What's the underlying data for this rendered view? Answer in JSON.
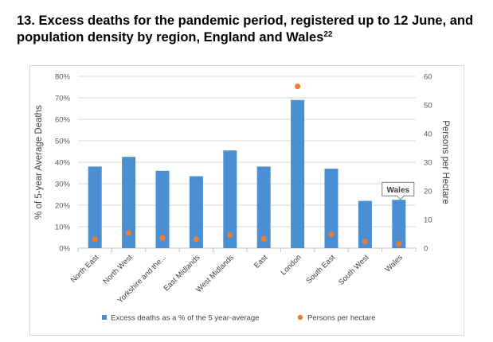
{
  "title": {
    "text": "13. Excess deaths for the pandemic period, registered up to 12 June, and population density by region, England and Wales",
    "footnote": "22"
  },
  "chart_data": {
    "type": "bar",
    "categories": [
      "North East",
      "North West",
      "Yorkshire and the...",
      "East Midlands",
      "West Midlands",
      "East",
      "London",
      "South East",
      "South West",
      "Wales"
    ],
    "series": [
      {
        "name": "Excess deaths as a % of the 5 year-average",
        "type": "bar",
        "axis": "left",
        "color": "#4a8fd1",
        "values": [
          38,
          42.5,
          36,
          33.5,
          45.5,
          38,
          69,
          37,
          22,
          22.5
        ]
      },
      {
        "name": "Persons per hectare",
        "type": "scatter",
        "axis": "right",
        "color": "#ed7d31",
        "values": [
          3.1,
          5.3,
          3.6,
          3.1,
          4.6,
          3.2,
          56.5,
          4.8,
          2.3,
          1.5
        ]
      }
    ],
    "ylabel": "% of 5-year Average Deaths",
    "y2label": "Persons per Hectare",
    "ylim": [
      0,
      80
    ],
    "y2lim": [
      0,
      60
    ],
    "yticks": [
      "0%",
      "10%",
      "20%",
      "30%",
      "40%",
      "50%",
      "60%",
      "70%",
      "80%"
    ],
    "y2ticks": [
      "0",
      "10",
      "20",
      "30",
      "40",
      "50",
      "60"
    ],
    "gridlines": true,
    "legend_position": "bottom",
    "callout": {
      "text": "Wales",
      "category": "Wales"
    }
  }
}
